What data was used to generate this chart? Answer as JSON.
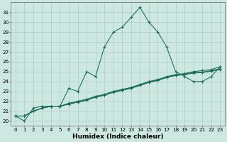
{
  "title": "",
  "xlabel": "Humidex (Indice chaleur)",
  "ylabel": "",
  "bg_color": "#cce8e0",
  "grid_color": "#aaccC4",
  "line_color": "#1a6b5a",
  "x_data": [
    0,
    1,
    2,
    3,
    4,
    5,
    6,
    7,
    8,
    9,
    10,
    11,
    12,
    13,
    14,
    15,
    16,
    17,
    18,
    19,
    20,
    21,
    22,
    23
  ],
  "series": [
    [
      20.5,
      20.0,
      21.3,
      21.5,
      21.5,
      21.5,
      23.3,
      23.0,
      25.0,
      24.5,
      27.5,
      29.0,
      29.5,
      30.5,
      31.5,
      30.0,
      29.0,
      27.5,
      25.0,
      24.5,
      24.0,
      24.0,
      24.5,
      25.5
    ],
    [
      20.5,
      20.5,
      21.0,
      21.3,
      21.5,
      21.5,
      21.7,
      21.9,
      22.1,
      22.4,
      22.6,
      22.9,
      23.1,
      23.3,
      23.6,
      23.9,
      24.1,
      24.4,
      24.6,
      24.7,
      24.85,
      24.9,
      25.05,
      25.2
    ],
    [
      20.5,
      20.5,
      21.0,
      21.3,
      21.5,
      21.5,
      21.75,
      21.95,
      22.15,
      22.45,
      22.65,
      22.95,
      23.15,
      23.35,
      23.65,
      23.95,
      24.15,
      24.45,
      24.65,
      24.75,
      24.9,
      24.95,
      25.1,
      25.3
    ],
    [
      20.5,
      20.5,
      21.0,
      21.3,
      21.5,
      21.5,
      21.8,
      22.0,
      22.2,
      22.5,
      22.7,
      23.0,
      23.2,
      23.4,
      23.7,
      24.0,
      24.2,
      24.5,
      24.7,
      24.8,
      25.0,
      25.1,
      25.2,
      25.5
    ]
  ],
  "ylim": [
    19.5,
    32.0
  ],
  "xlim": [
    -0.5,
    23.5
  ],
  "yticks": [
    20,
    21,
    22,
    23,
    24,
    25,
    26,
    27,
    28,
    29,
    30,
    31
  ],
  "xticks": [
    0,
    1,
    2,
    3,
    4,
    5,
    6,
    7,
    8,
    9,
    10,
    11,
    12,
    13,
    14,
    15,
    16,
    17,
    18,
    19,
    20,
    21,
    22,
    23
  ],
  "tick_fontsize": 5.2,
  "xlabel_fontsize": 6.5,
  "marker_size": 3.0,
  "linewidth": 0.75
}
